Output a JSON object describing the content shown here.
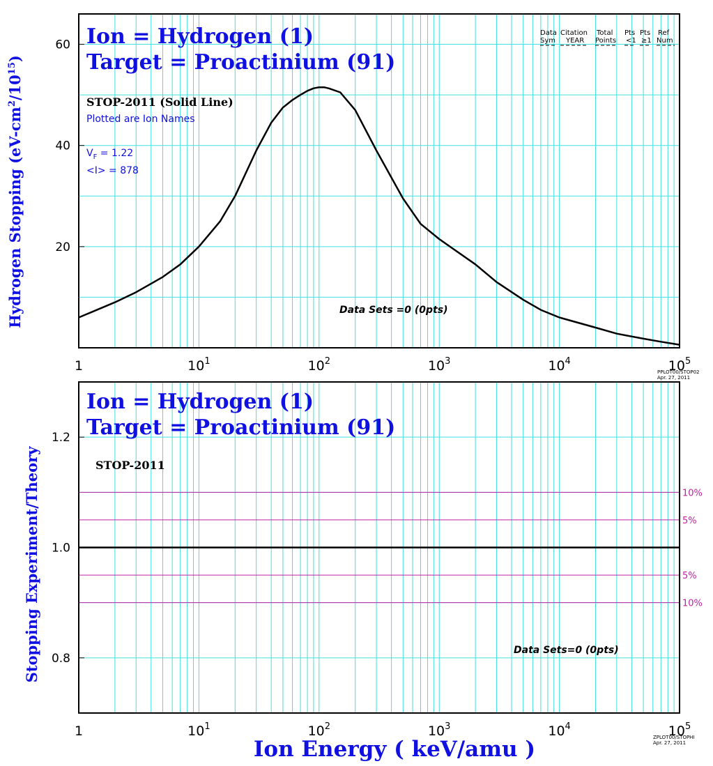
{
  "chart_data": [
    {
      "type": "line",
      "title_lines": [
        "Ion = Hydrogen (1)",
        "Target = Proactinium (91)"
      ],
      "ylabel_main": "Hydrogen Stopping (eV-cm",
      "ylabel_sup1": "2",
      "ylabel_mid": "/10",
      "ylabel_sup2": "15",
      "ylabel_end": ")",
      "x_scale": "log",
      "xlim": [
        1,
        100000
      ],
      "ylim": [
        0,
        66
      ],
      "x_ticks": [
        {
          "base": "1",
          "exp": ""
        },
        {
          "base": "10",
          "exp": "1"
        },
        {
          "base": "10",
          "exp": "2"
        },
        {
          "base": "10",
          "exp": "3"
        },
        {
          "base": "10",
          "exp": "4"
        },
        {
          "base": "10",
          "exp": "5"
        }
      ],
      "y_ticks": [
        "20",
        "40",
        "60"
      ],
      "curve_label": "STOP-2011 (Solid Line)",
      "note1": "Plotted are Ion Names",
      "vf_label": "V",
      "vf_sub": "F",
      "vf_value": " = 1.22",
      "i_value": "<I> = 878",
      "datasets_text": "Data Sets =0 (0pts)",
      "legend_headers": [
        [
          "Data",
          "Sym"
        ],
        [
          "Citation",
          "YEAR"
        ],
        [
          "Total",
          "Points"
        ],
        [
          "Pts",
          "<1"
        ],
        [
          "Pts",
          "≥1"
        ],
        [
          "Ref",
          "Num"
        ]
      ],
      "stamp_lines": [
        "PPLOT00/STOP02",
        "Apr. 27, 2011"
      ],
      "grid": true,
      "series": [
        {
          "x": [
            1,
            2,
            3,
            5,
            7,
            10,
            15,
            20,
            30,
            40,
            50,
            60,
            70,
            80,
            90,
            100,
            110,
            120,
            150,
            200,
            300,
            500,
            700,
            1000,
            2000,
            3000,
            5000,
            7000,
            10000,
            20000,
            30000,
            50000,
            70000,
            100000
          ],
          "y": [
            6,
            9,
            11,
            14,
            16.5,
            20,
            25,
            30,
            39,
            44.5,
            47.5,
            49,
            50,
            50.8,
            51.3,
            51.5,
            51.5,
            51.3,
            50.5,
            47,
            39,
            29.5,
            24.5,
            21.5,
            16.5,
            13,
            9.5,
            7.5,
            6,
            4,
            2.8,
            1.8,
            1.2,
            0.6
          ]
        }
      ]
    },
    {
      "type": "line",
      "title_lines": [
        "Ion = Hydrogen (1)",
        "Target = Proactinium (91)"
      ],
      "ylabel": "Stopping  Experiment/Theory",
      "xlabel": "Ion  Energy  ( keV/amu )",
      "x_scale": "log",
      "xlim": [
        1,
        100000
      ],
      "ylim": [
        0.7,
        1.3
      ],
      "x_ticks": [
        {
          "base": "1",
          "exp": ""
        },
        {
          "base": "10",
          "exp": "1"
        },
        {
          "base": "10",
          "exp": "2"
        },
        {
          "base": "10",
          "exp": "3"
        },
        {
          "base": "10",
          "exp": "4"
        },
        {
          "base": "10",
          "exp": "5"
        }
      ],
      "y_ticks": [
        "0.8",
        "1.0",
        "1.2"
      ],
      "curve_label": "STOP-2011",
      "datasets_text": "Data Sets=0 (0pts)",
      "reference_lines": [
        {
          "y": 1.1,
          "label": "10%"
        },
        {
          "y": 1.05,
          "label": "5%"
        },
        {
          "y": 0.95,
          "label": "5%"
        },
        {
          "y": 0.9,
          "label": "10%"
        }
      ],
      "stamp_lines": [
        "ZPLOT00/STOPHI",
        "Apr. 27, 2011"
      ],
      "grid": true,
      "series": [
        {
          "x": [
            1,
            100000
          ],
          "y": [
            1.0,
            1.0
          ]
        }
      ],
      "colors": {
        "grid": "#40e0e0",
        "ref": "#c020a0",
        "label": "#1010e0"
      }
    }
  ]
}
